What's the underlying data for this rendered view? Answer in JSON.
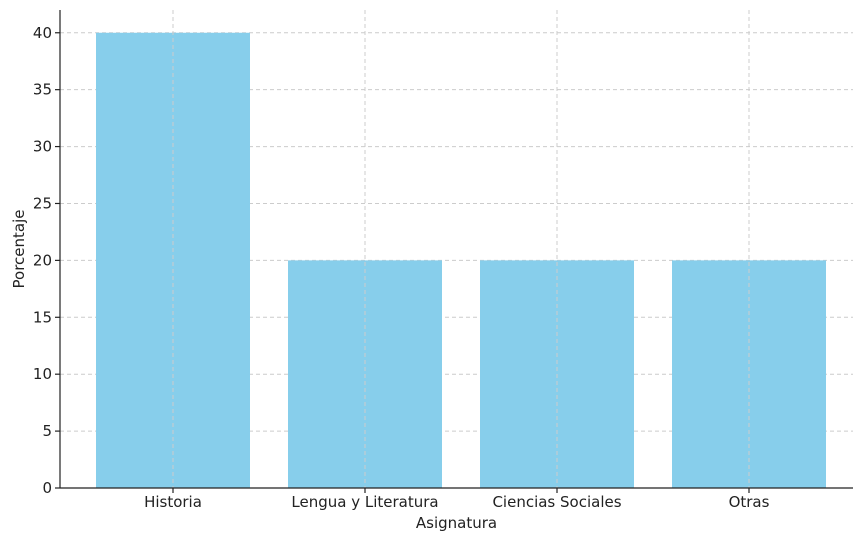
{
  "chart_data": {
    "type": "bar",
    "categories": [
      "Historia",
      "Lengua y Literatura",
      "Ciencias Sociales",
      "Otras"
    ],
    "values": [
      40,
      20,
      20,
      20
    ],
    "xlabel": "Asignatura",
    "ylabel": "Porcentaje",
    "ylim": [
      0,
      42
    ],
    "yticks": [
      0,
      5,
      10,
      15,
      20,
      25,
      30,
      35,
      40
    ],
    "grid": true,
    "bar_color": "#87CEEB"
  }
}
